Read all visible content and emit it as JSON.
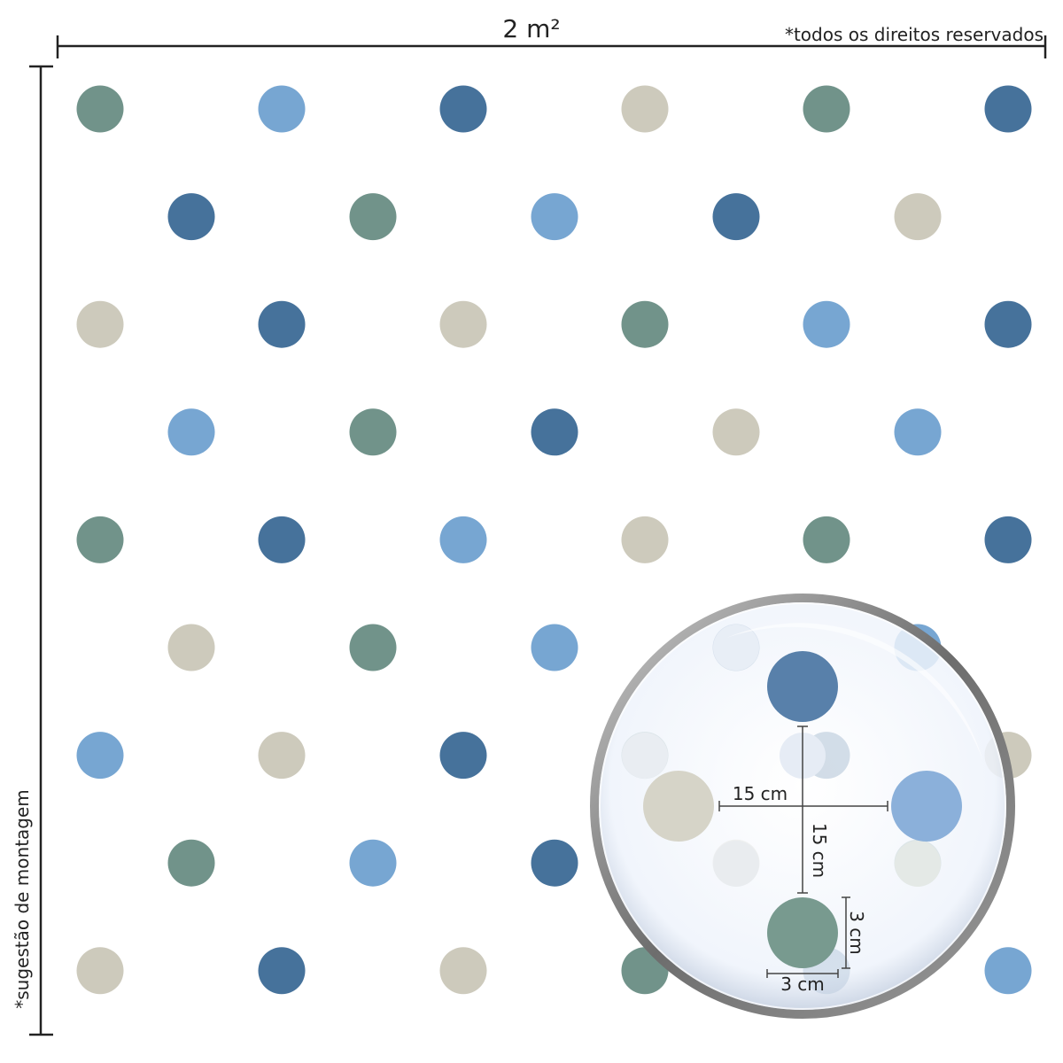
{
  "header": {
    "width_label": "2 m²",
    "copyright": "*todos os direitos reservados"
  },
  "side_label": "*sugestão de montagem",
  "magnifier": {
    "horizontal_spacing": "15 cm",
    "vertical_spacing": "15 cm",
    "dot_height": "3 cm",
    "dot_width": "3 cm"
  }
}
